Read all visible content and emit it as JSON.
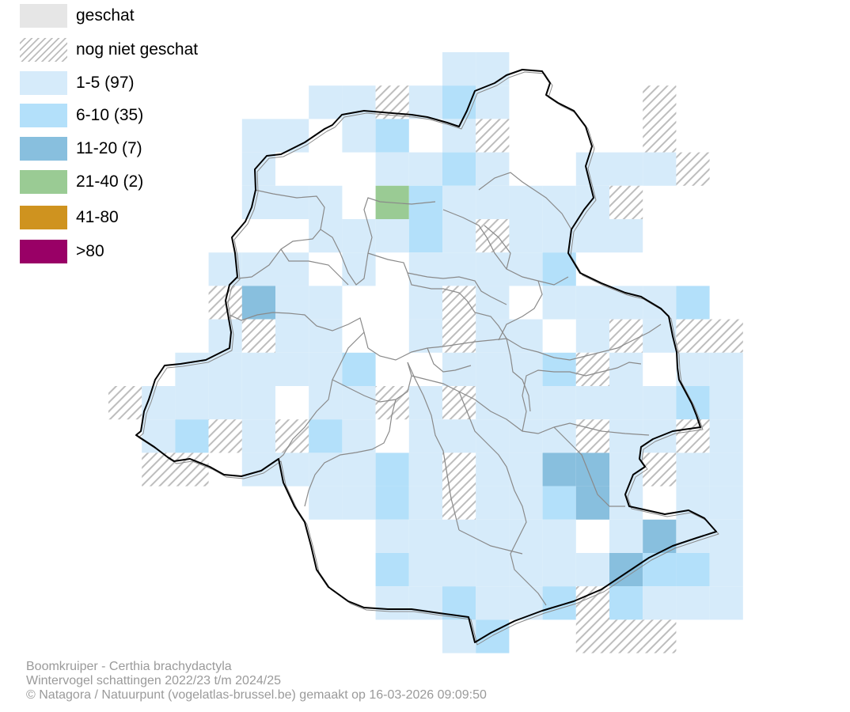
{
  "legend": {
    "items": [
      {
        "label": "geschat",
        "color": "#e6e6e6",
        "pattern": "solid"
      },
      {
        "label": "nog niet geschat",
        "color": "#bdbdbd",
        "pattern": "hatch"
      },
      {
        "label": "1-5 (97)",
        "color": "#d6ebfa",
        "pattern": "solid"
      },
      {
        "label": "6-10 (35)",
        "color": "#b3e0fa",
        "pattern": "solid"
      },
      {
        "label": "11-20 (7)",
        "color": "#88bfde",
        "pattern": "solid"
      },
      {
        "label": "21-40 (2)",
        "color": "#9acb94",
        "pattern": "solid"
      },
      {
        "label": "41-80",
        "color": "#cf931f",
        "pattern": "solid"
      },
      {
        "label": ">80",
        "color": "#990066",
        "pattern": "solid"
      }
    ]
  },
  "caption": {
    "line1": "Boomkruiper - Certhia brachydactyla",
    "line2": "Wintervogel schattingen 2022/23 t/m 2024/25",
    "line3": "© Natagora / Natuurpunt (vogelatlas-brussel.be) gemaakt op 16-03-2026 09:09:50"
  },
  "map": {
    "colors": {
      "c1": "#d6ebfa",
      "c2": "#b3e0fa",
      "c3": "#88bfde",
      "c4": "#9acb94",
      "hatch": "#bdbdbd",
      "outline": "#000000",
      "districts": "#8a8a8a"
    }
  }
}
